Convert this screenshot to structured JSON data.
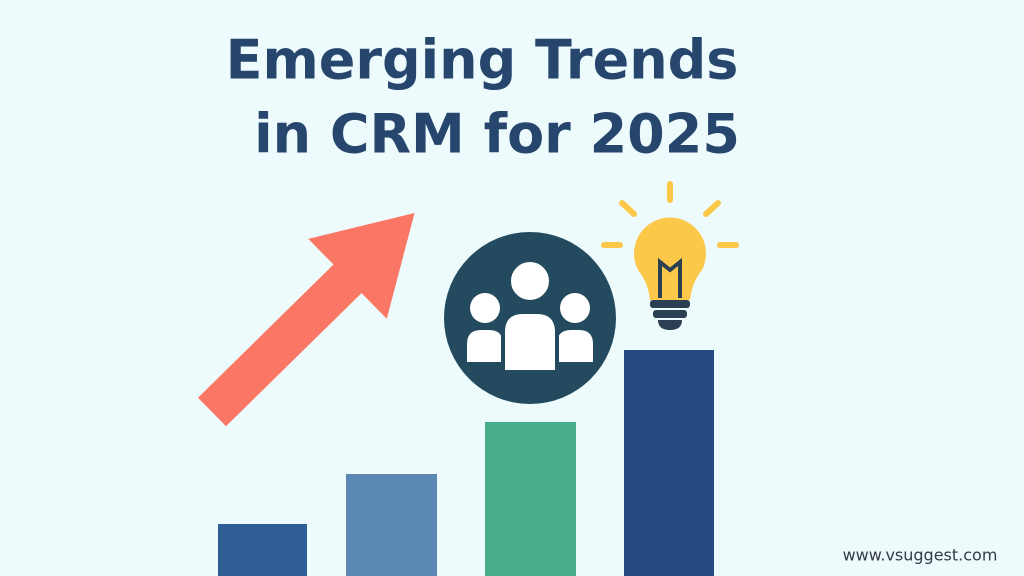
{
  "title": {
    "line1": "Emerging Trends",
    "line2": "in CRM for 2025"
  },
  "footer": {
    "website": "www.vsuggest.com"
  }
}
